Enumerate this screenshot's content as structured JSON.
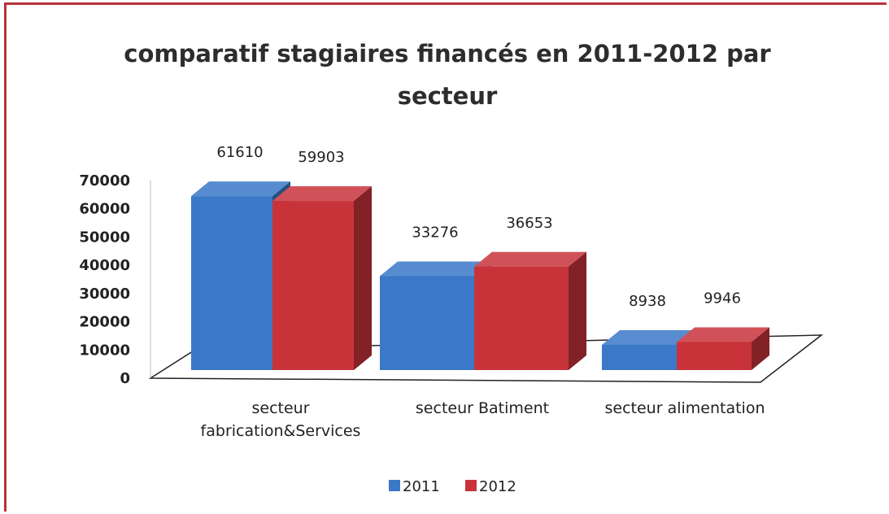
{
  "chart_data": {
    "type": "bar3d",
    "title": "comparatif stagiaires financés en 2011-2012 par secteur",
    "categories": [
      "secteur fabrication&Services",
      "secteur Batiment",
      "secteur alimentation"
    ],
    "series": [
      {
        "name": "2011",
        "color": "#3b78c8",
        "values": [
          61610,
          33276,
          8938
        ]
      },
      {
        "name": "2012",
        "color": "#c8333a",
        "values": [
          59903,
          36653,
          9946
        ]
      }
    ],
    "ylim": [
      0,
      70000
    ],
    "yticks": [
      0,
      10000,
      20000,
      30000,
      40000,
      50000,
      60000,
      70000
    ],
    "grid": false,
    "legend": "bottom"
  }
}
